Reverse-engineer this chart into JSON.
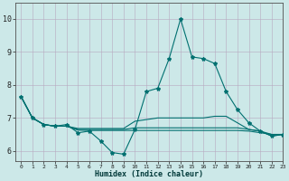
{
  "xlabel": "Humidex (Indice chaleur)",
  "xlim": [
    -0.5,
    23
  ],
  "ylim": [
    5.7,
    10.5
  ],
  "yticks": [
    6,
    7,
    8,
    9,
    10
  ],
  "xticks": [
    0,
    1,
    2,
    3,
    4,
    5,
    6,
    7,
    8,
    9,
    10,
    11,
    12,
    13,
    14,
    15,
    16,
    17,
    18,
    19,
    20,
    21,
    22,
    23
  ],
  "bg_color": "#cce8e8",
  "grid_color": "#b8a8c0",
  "line_color": "#007070",
  "main_line": {
    "x": [
      0,
      1,
      2,
      3,
      4,
      5,
      6,
      7,
      8,
      9,
      10,
      11,
      12,
      13,
      14,
      15,
      16,
      17,
      18,
      19,
      20,
      21,
      22,
      23
    ],
    "y": [
      7.65,
      7.0,
      6.8,
      6.75,
      6.8,
      6.55,
      6.6,
      6.3,
      5.95,
      5.9,
      6.65,
      7.8,
      7.9,
      8.8,
      10.0,
      8.85,
      8.8,
      8.65,
      7.8,
      7.25,
      6.85,
      6.6,
      6.45,
      6.5
    ]
  },
  "flat_lines": [
    [
      7.65,
      7.0,
      6.8,
      6.75,
      6.75,
      6.68,
      6.68,
      6.68,
      6.68,
      6.68,
      6.9,
      6.95,
      7.0,
      7.0,
      7.0,
      7.0,
      7.0,
      7.05,
      7.05,
      6.85,
      6.65,
      6.6,
      6.45,
      6.5
    ],
    [
      7.65,
      7.0,
      6.8,
      6.75,
      6.75,
      6.65,
      6.65,
      6.65,
      6.65,
      6.65,
      6.7,
      6.7,
      6.7,
      6.7,
      6.7,
      6.7,
      6.7,
      6.7,
      6.7,
      6.7,
      6.65,
      6.6,
      6.5,
      6.5
    ],
    [
      7.65,
      7.0,
      6.8,
      6.75,
      6.75,
      6.63,
      6.62,
      6.62,
      6.62,
      6.62,
      6.62,
      6.62,
      6.62,
      6.62,
      6.62,
      6.62,
      6.62,
      6.62,
      6.62,
      6.62,
      6.6,
      6.55,
      6.5,
      6.5
    ]
  ]
}
